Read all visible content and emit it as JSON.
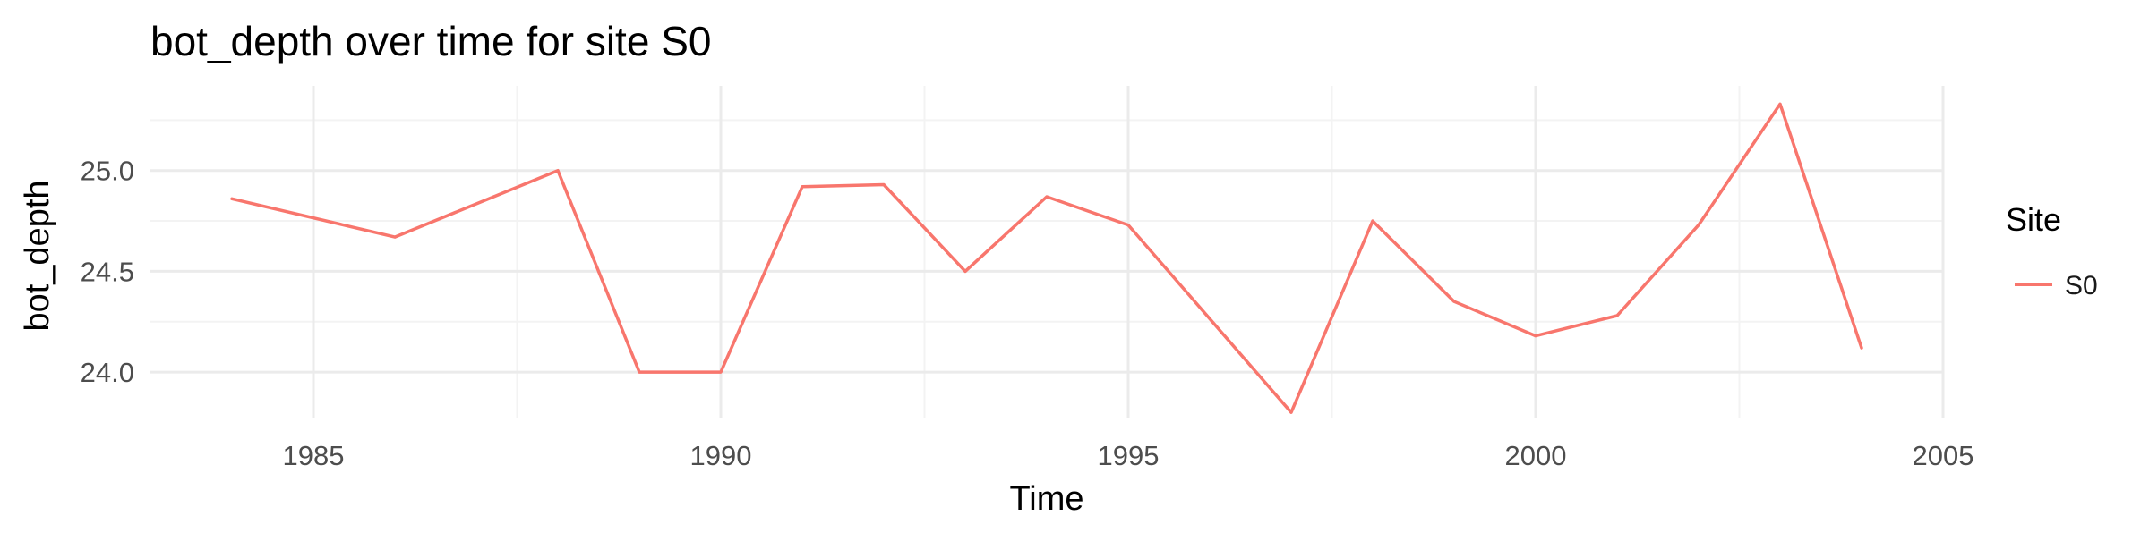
{
  "chart_data": {
    "type": "line",
    "title": "bot_depth over time for site S0",
    "xlabel": "Time",
    "ylabel": "bot_depth",
    "xlim": [
      1983,
      2005
    ],
    "ylim": [
      23.77,
      25.42
    ],
    "x_ticks": [
      1985,
      1990,
      1995,
      2000,
      2005
    ],
    "x_tick_labels": [
      "1985",
      "1990",
      "1995",
      "2000",
      "2005"
    ],
    "y_ticks": [
      24.0,
      24.5,
      25.0
    ],
    "y_tick_labels": [
      "24.0",
      "24.5",
      "25.0"
    ],
    "grid": true,
    "legend": {
      "title": "Site",
      "position": "right"
    },
    "series": [
      {
        "name": "S0",
        "color": "#F8766D",
        "x": [
          1984,
          1986,
          1988,
          1989,
          1990,
          1991,
          1992,
          1993,
          1994,
          1995,
          1997,
          1998,
          1999,
          2000,
          2001,
          2002,
          2003,
          2004
        ],
        "values": [
          24.86,
          24.67,
          25.0,
          24.0,
          24.0,
          24.92,
          24.93,
          24.5,
          24.87,
          24.73,
          23.8,
          24.75,
          24.35,
          24.18,
          24.28,
          24.73,
          25.33,
          24.12
        ]
      }
    ]
  }
}
